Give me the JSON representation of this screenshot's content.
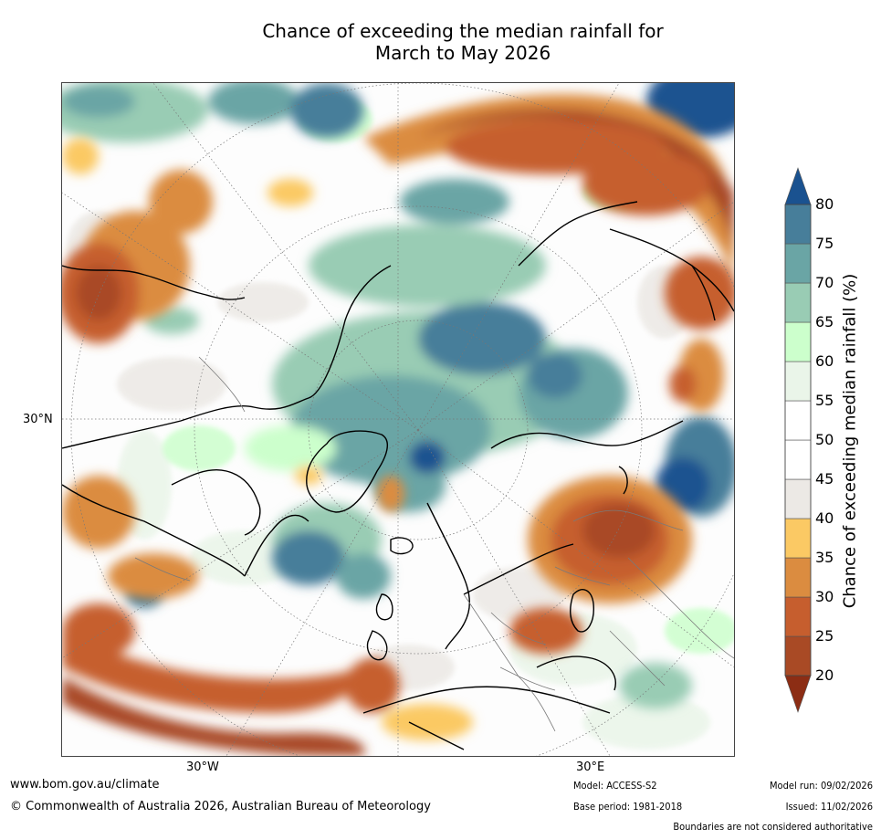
{
  "title": {
    "line1": "Chance of exceeding the median rainfall for",
    "line2": "March to May 2026"
  },
  "map": {
    "projection": "north polar stereographic",
    "lat_labels": [
      "30°N"
    ],
    "lon_labels": [
      "30°W",
      "30°E"
    ]
  },
  "colorbar": {
    "label": "Chance of exceeding median rainfall (%)",
    "ticks": [
      "20",
      "25",
      "30",
      "35",
      "40",
      "45",
      "50",
      "55",
      "60",
      "65",
      "70",
      "75",
      "80"
    ],
    "bins": [
      {
        "range": "<20",
        "color": "#8c2d14"
      },
      {
        "range": "20-25",
        "color": "#a94a25"
      },
      {
        "range": "25-30",
        "color": "#c65e2e"
      },
      {
        "range": "30-35",
        "color": "#db8c40"
      },
      {
        "range": "35-40",
        "color": "#fbc964"
      },
      {
        "range": "40-45",
        "color": "#ece9e5"
      },
      {
        "range": "45-50",
        "color": "#ffffff"
      },
      {
        "range": "50-55",
        "color": "#ffffff"
      },
      {
        "range": "55-60",
        "color": "#eaf5e9"
      },
      {
        "range": "60-65",
        "color": "#ccffcc"
      },
      {
        "range": "65-70",
        "color": "#99ccb4"
      },
      {
        "range": "70-75",
        "color": "#6aa5a5"
      },
      {
        "range": "75-80",
        "color": "#477e9a"
      },
      {
        "range": ">80",
        "color": "#1a5290"
      }
    ]
  },
  "footer": {
    "website": "www.bom.gov.au/climate",
    "copyright": "© Commonwealth of Australia 2026, Australian Bureau of Meteorology",
    "model": "Model: ACCESS-S2",
    "base_period": "Base period: 1981-2018",
    "model_run": "Model run: 09/02/2026",
    "issued": "Issued: 11/02/2026",
    "disclaimer": "Boundaries are not considered authoritative"
  }
}
